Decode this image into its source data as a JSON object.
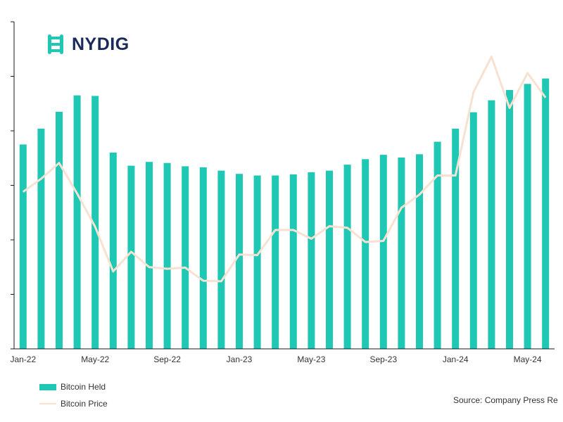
{
  "logo": {
    "text": "NYDIG"
  },
  "source": "Source: Company Press Re",
  "colors": {
    "bar": "#1ec8b4",
    "line": "#f7e2d2",
    "axis": "#1a1a1a",
    "brand": "#1ec8b4",
    "logo_text": "#1b2a5c"
  },
  "chart_data": {
    "type": "bar",
    "title": "",
    "xlabel": "",
    "ylabel": "",
    "x_tick_labels": [
      "Jan-22",
      "May-22",
      "Sep-22",
      "Jan-23",
      "May-23",
      "Sep-23",
      "Jan-24",
      "May-24"
    ],
    "categories": [
      "Jan-22",
      "Feb-22",
      "Mar-22",
      "Apr-22",
      "May-22",
      "Jun-22",
      "Jul-22",
      "Aug-22",
      "Sep-22",
      "Oct-22",
      "Nov-22",
      "Dec-22",
      "Jan-23",
      "Feb-23",
      "Mar-23",
      "Apr-23",
      "May-23",
      "Jun-23",
      "Jul-23",
      "Aug-23",
      "Sep-23",
      "Oct-23",
      "Nov-23",
      "Dec-23",
      "Jan-24",
      "Feb-24",
      "Mar-24",
      "Apr-24",
      "May-24",
      "Jun-24"
    ],
    "ylim": [
      0,
      600
    ],
    "grid": false,
    "legend_position": "bottom-left",
    "series": [
      {
        "name": "Bitcoin Held",
        "type": "bar",
        "values": [
          375,
          404,
          435,
          465,
          464,
          360,
          336,
          343,
          341,
          335,
          333,
          327,
          321,
          318,
          318,
          320,
          324,
          327,
          338,
          348,
          356,
          351,
          357,
          380,
          404,
          434,
          456,
          475,
          486,
          496
        ]
      },
      {
        "name": "Bitcoin Price",
        "type": "line",
        "values": [
          288,
          312,
          341,
          285,
          224,
          142,
          178,
          150,
          147,
          149,
          125,
          124,
          173,
          172,
          218,
          218,
          202,
          225,
          222,
          196,
          198,
          259,
          283,
          318,
          318,
          471,
          536,
          442,
          506,
          461
        ]
      }
    ]
  }
}
